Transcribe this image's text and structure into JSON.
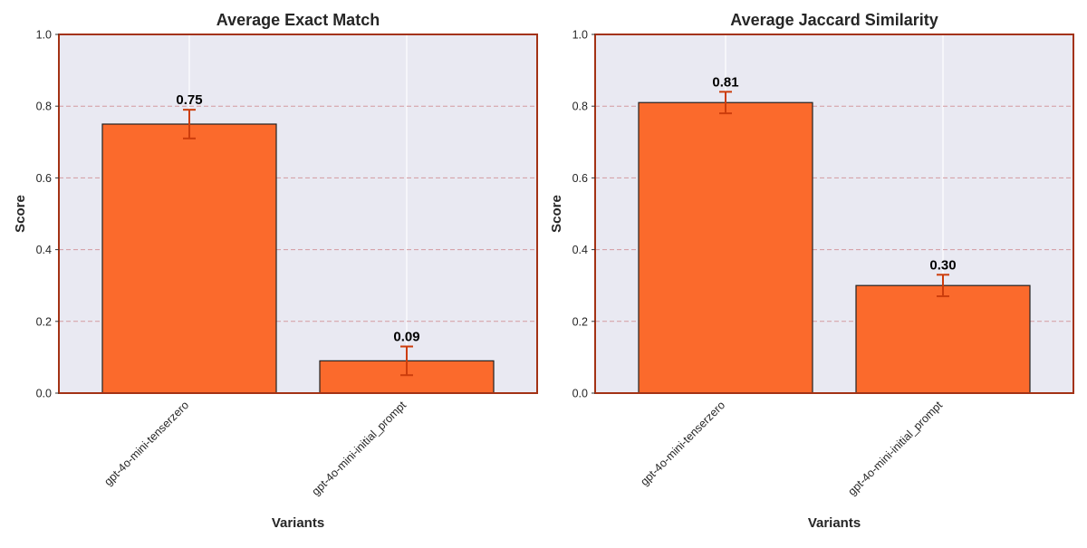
{
  "colors": {
    "bar_fill": "#fb6a2c",
    "bar_edge": "#222222",
    "error_bar": "#cc3d0c",
    "plot_bg": "#e9e9f2",
    "frame": "#a33215",
    "grid_dashed": "#d39aa0",
    "grid_vertical": "#ffffff"
  },
  "chart_data": [
    {
      "type": "bar",
      "title": "Average Exact Match",
      "xlabel": "Variants",
      "ylabel": "Score",
      "ylim": [
        0,
        1
      ],
      "yticks": [
        "0.0",
        "0.2",
        "0.4",
        "0.6",
        "0.8",
        "1.0"
      ],
      "categories": [
        "gpt-4o-mini-tenserzero",
        "gpt-4o-mini-initial_prompt"
      ],
      "values": [
        0.75,
        0.09
      ],
      "errors": [
        0.04,
        0.04
      ],
      "value_labels": [
        "0.75",
        "0.09"
      ],
      "grid": true
    },
    {
      "type": "bar",
      "title": "Average Jaccard Similarity",
      "xlabel": "Variants",
      "ylabel": "Score",
      "ylim": [
        0,
        1
      ],
      "yticks": [
        "0.0",
        "0.2",
        "0.4",
        "0.6",
        "0.8",
        "1.0"
      ],
      "categories": [
        "gpt-4o-mini-tenserzero",
        "gpt-4o-mini-initial_prompt"
      ],
      "values": [
        0.81,
        0.3
      ],
      "errors": [
        0.03,
        0.03
      ],
      "value_labels": [
        "0.81",
        "0.30"
      ],
      "grid": true
    }
  ]
}
